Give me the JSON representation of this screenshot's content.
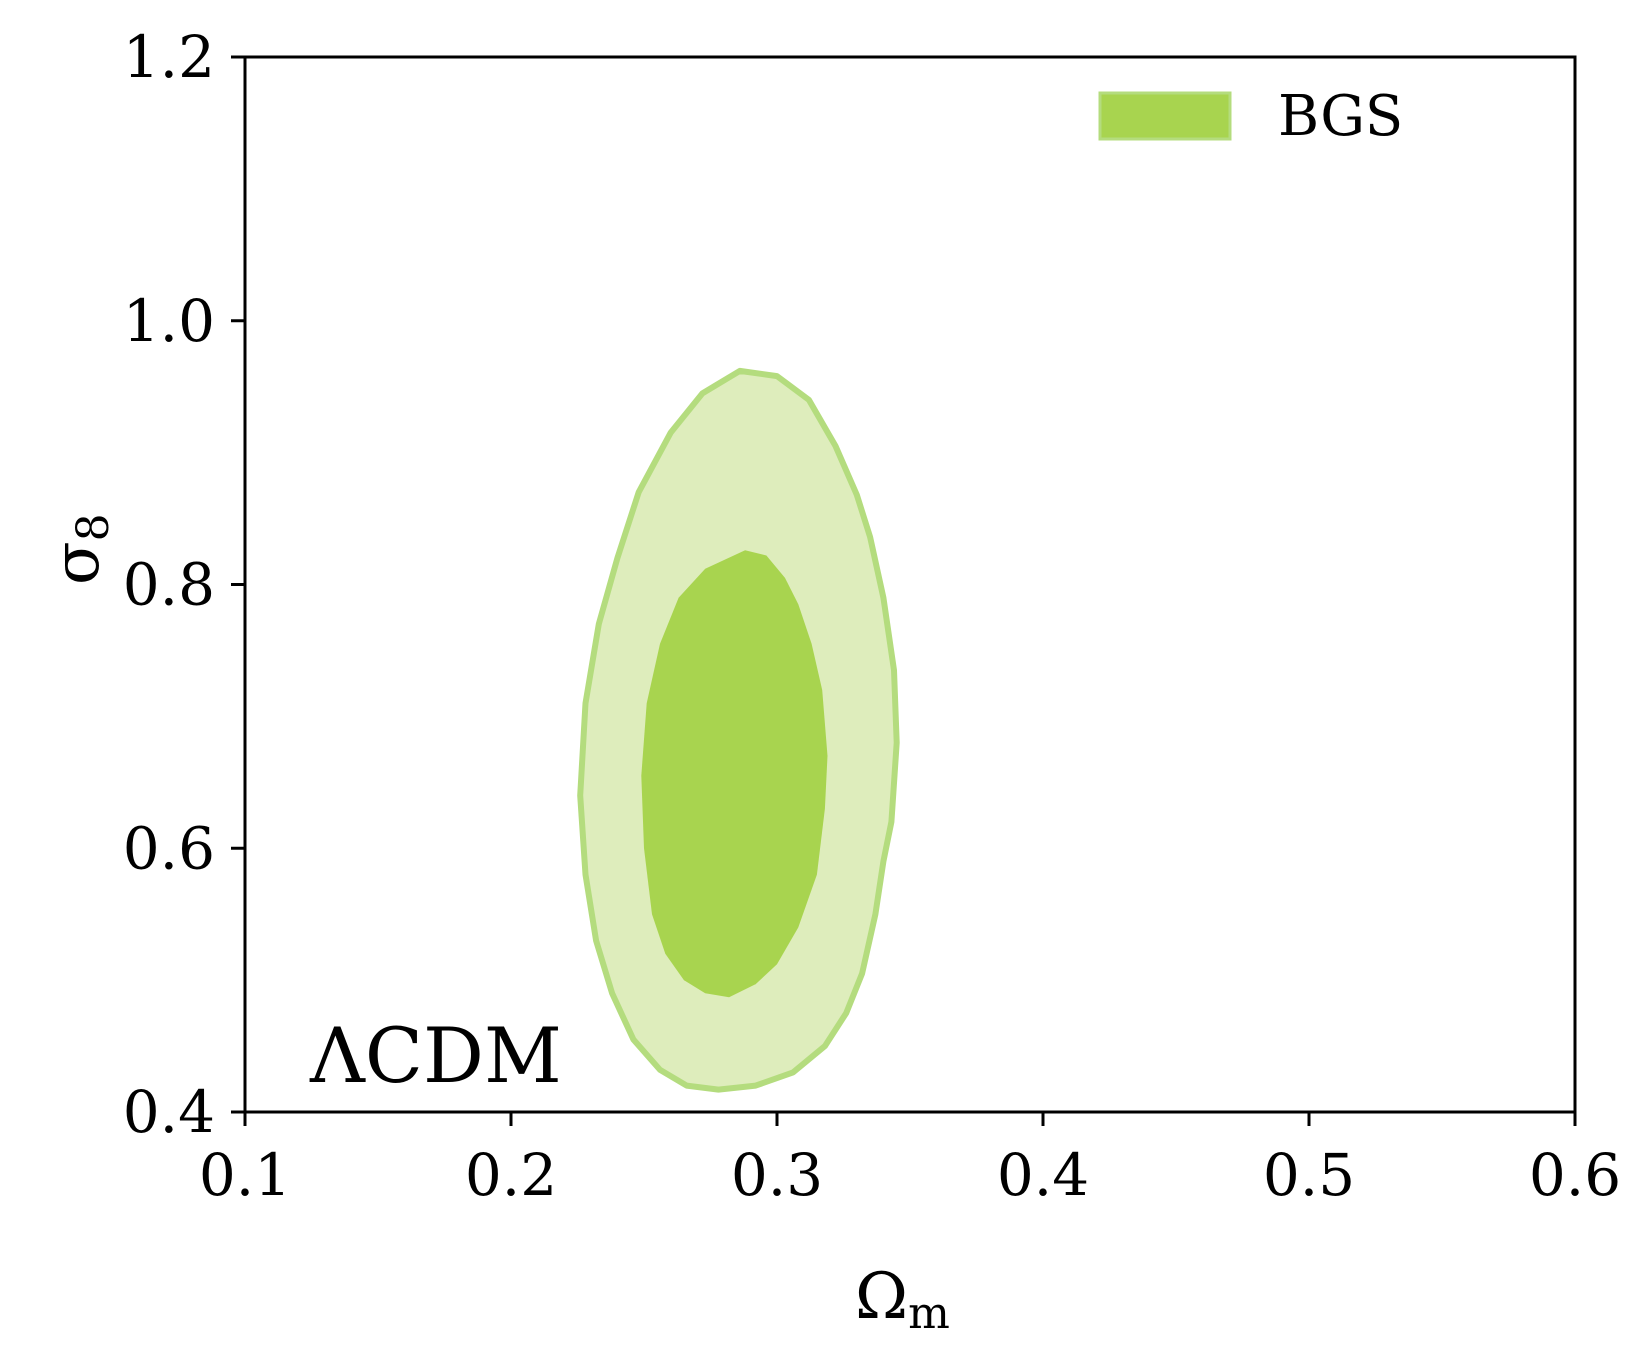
{
  "chart_data": {
    "type": "contour",
    "xlabel": "Ωm",
    "ylabel": "σ8",
    "xlim": [
      0.1,
      0.6
    ],
    "ylim": [
      0.4,
      1.2
    ],
    "xticks": [
      "0.1",
      "0.2",
      "0.3",
      "0.4",
      "0.5",
      "0.6"
    ],
    "yticks": [
      "0.4",
      "0.6",
      "0.8",
      "1.0",
      "1.2"
    ],
    "grid": false,
    "legend": {
      "placement": "top-right",
      "entries": [
        {
          "label": "BGS",
          "color": "#a8d44f"
        }
      ]
    },
    "annotation": "ΛCDM",
    "colors": {
      "inner": "#a8d44f",
      "outer_fill": "#deedbc",
      "outer_edge": "#b4dc7e"
    },
    "series": [
      {
        "name": "BGS",
        "contours": [
          {
            "level": "outer",
            "points": [
              [
                0.286,
                0.962
              ],
              [
                0.3,
                0.958
              ],
              [
                0.312,
                0.94
              ],
              [
                0.322,
                0.905
              ],
              [
                0.33,
                0.868
              ],
              [
                0.335,
                0.836
              ],
              [
                0.34,
                0.79
              ],
              [
                0.344,
                0.735
              ],
              [
                0.345,
                0.68
              ],
              [
                0.343,
                0.62
              ],
              [
                0.34,
                0.59
              ],
              [
                0.337,
                0.55
              ],
              [
                0.332,
                0.505
              ],
              [
                0.326,
                0.475
              ],
              [
                0.318,
                0.45
              ],
              [
                0.306,
                0.43
              ],
              [
                0.292,
                0.42
              ],
              [
                0.278,
                0.417
              ],
              [
                0.266,
                0.42
              ],
              [
                0.256,
                0.432
              ],
              [
                0.246,
                0.455
              ],
              [
                0.238,
                0.49
              ],
              [
                0.232,
                0.53
              ],
              [
                0.228,
                0.58
              ],
              [
                0.226,
                0.64
              ],
              [
                0.228,
                0.71
              ],
              [
                0.233,
                0.77
              ],
              [
                0.24,
                0.82
              ],
              [
                0.248,
                0.87
              ],
              [
                0.26,
                0.915
              ],
              [
                0.272,
                0.945
              ],
              [
                0.286,
                0.962
              ]
            ]
          },
          {
            "level": "inner",
            "points": [
              [
                0.288,
                0.826
              ],
              [
                0.296,
                0.822
              ],
              [
                0.303,
                0.805
              ],
              [
                0.308,
                0.785
              ],
              [
                0.313,
                0.755
              ],
              [
                0.317,
                0.72
              ],
              [
                0.319,
                0.67
              ],
              [
                0.318,
                0.63
              ],
              [
                0.315,
                0.58
              ],
              [
                0.308,
                0.54
              ],
              [
                0.3,
                0.512
              ],
              [
                0.292,
                0.497
              ],
              [
                0.282,
                0.487
              ],
              [
                0.273,
                0.49
              ],
              [
                0.265,
                0.5
              ],
              [
                0.258,
                0.52
              ],
              [
                0.253,
                0.55
              ],
              [
                0.25,
                0.6
              ],
              [
                0.249,
                0.655
              ],
              [
                0.251,
                0.71
              ],
              [
                0.256,
                0.755
              ],
              [
                0.263,
                0.79
              ],
              [
                0.273,
                0.812
              ],
              [
                0.288,
                0.826
              ]
            ]
          }
        ]
      }
    ]
  }
}
